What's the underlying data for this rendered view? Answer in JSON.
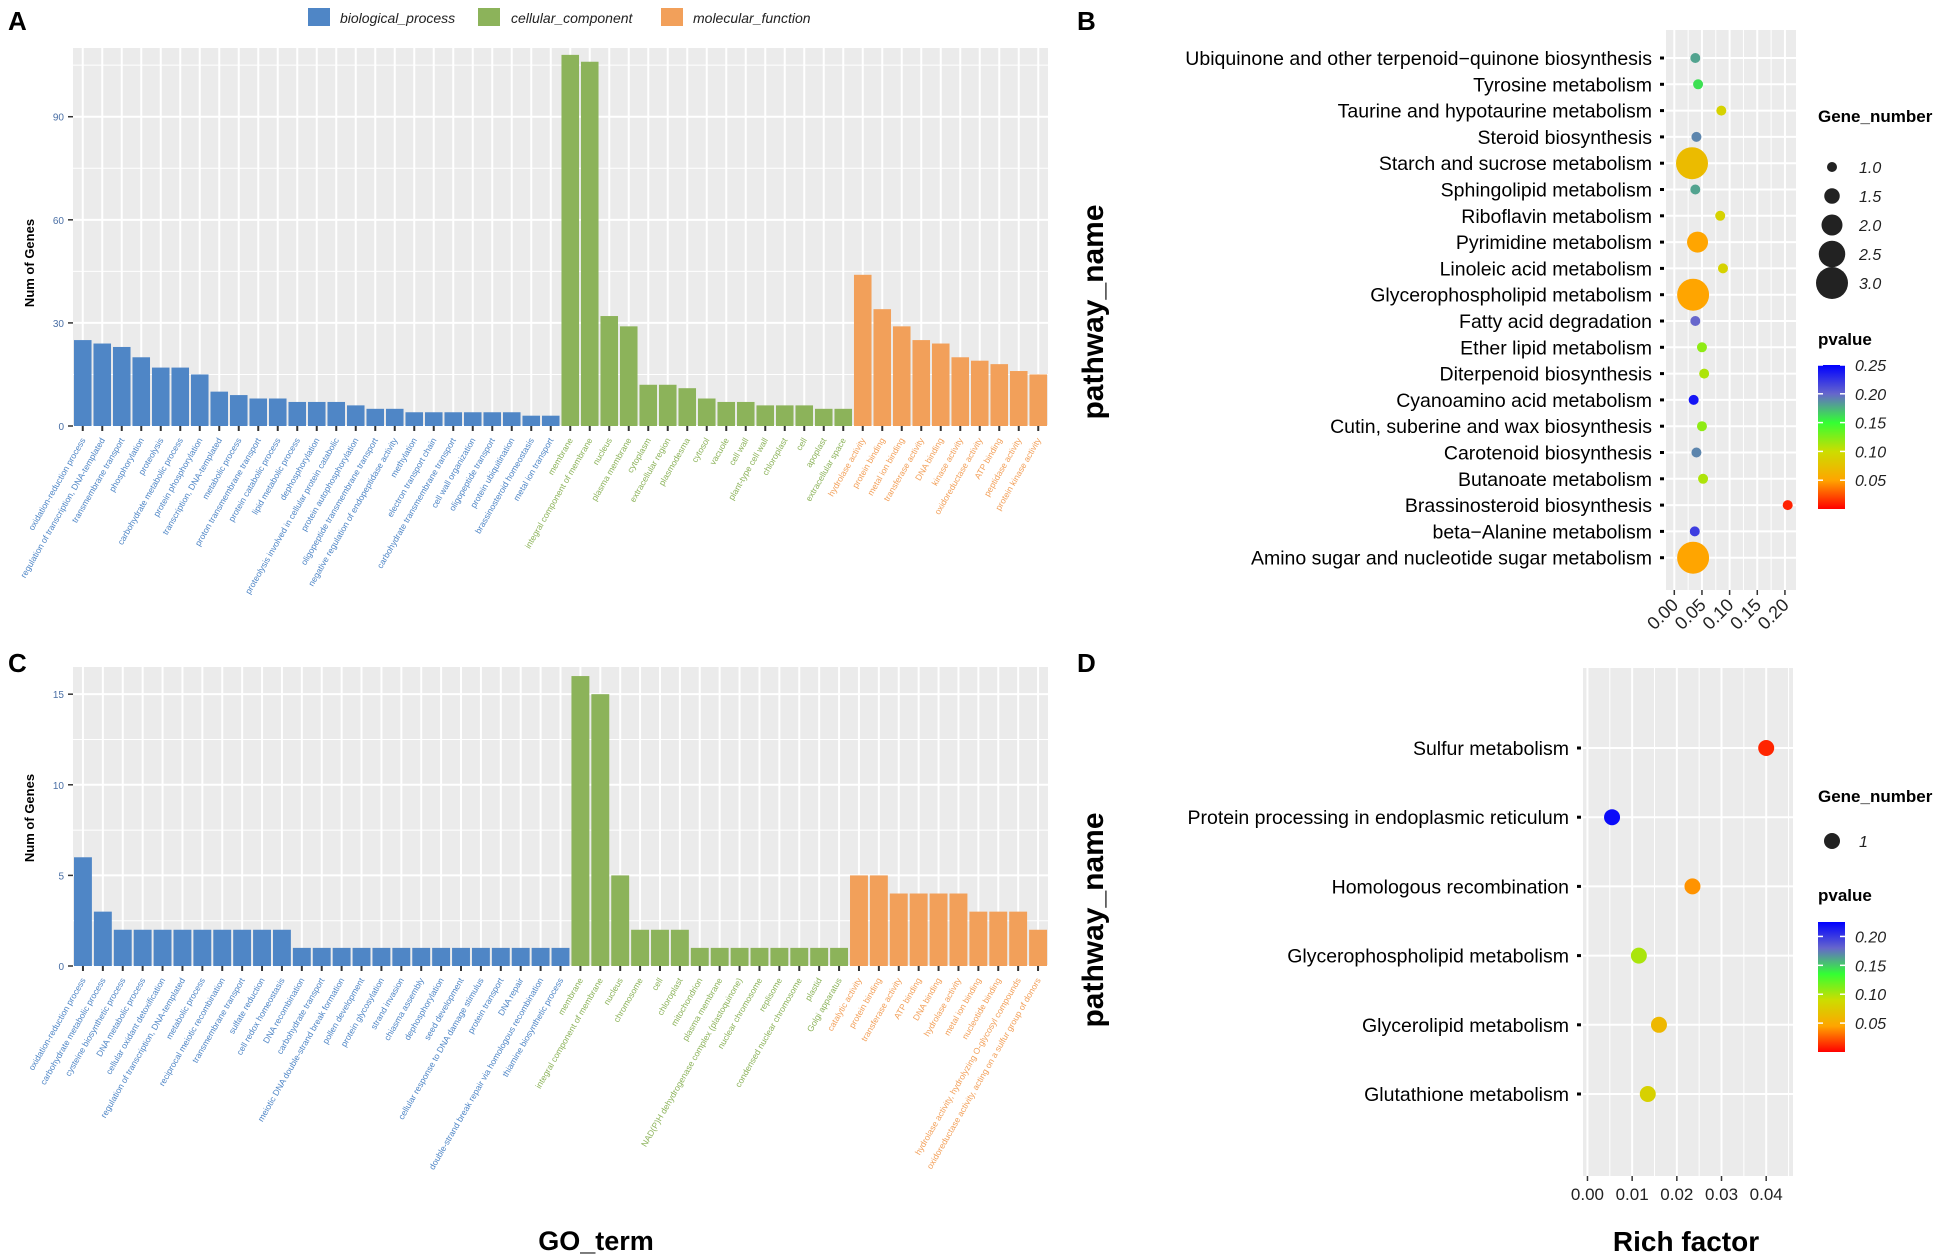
{
  "figure": {
    "shared_xlabel": "GO_term",
    "shared_rich_label": "Rich factor"
  },
  "colors": {
    "biological_process": "#4f86c6",
    "cellular_component": "#8cb35a",
    "molecular_function": "#f2a05a",
    "panel_bg": "#ebebeb",
    "grid": "#ffffff",
    "pvalue_gradient": [
      "#ff0000",
      "#ffa500",
      "#ccdd00",
      "#33ff33",
      "#6666cc",
      "#0000ff"
    ]
  },
  "legend": {
    "categories": [
      {
        "key": "biological_process",
        "label": "biological_process"
      },
      {
        "key": "cellular_component",
        "label": "cellular_component"
      },
      {
        "key": "molecular_function",
        "label": "molecular_function"
      }
    ]
  },
  "chart_data": [
    {
      "panel": "A",
      "type": "bar",
      "title": "",
      "xlabel": "",
      "ylabel": "Num of Genes",
      "ylim": [
        0,
        110
      ],
      "yticks": [
        0,
        30,
        60,
        90
      ],
      "categories": [
        "oxidation-reduction process",
        "regulation of transcription, DNA-templated",
        "transmembrane transport",
        "phosphorylation",
        "proteolysis",
        "carbohydrate metabolic process",
        "protein phosphorylation",
        "transcription, DNA-templated",
        "metabolic process",
        "proton transmembrane transport",
        "protein catabolic process",
        "lipid metabolic process",
        "dephosphorylation",
        "proteolysis involved in cellular protein catabolic",
        "protein autophosphorylation",
        "oligopeptide transmembrane transport",
        "negative regulation of endopeptidase activity",
        "methylation",
        "electron transport chain",
        "carbohydrate transmembrane transport",
        "cell wall organization",
        "oligopeptide transport",
        "protein ubiquitination",
        "brassinosteroid homeostasis",
        "metal ion transport",
        "membrane",
        "integral component of membrane",
        "nucleus",
        "plasma membrane",
        "cytoplasm",
        "extracellular region",
        "plasmodesma",
        "cytosol",
        "vacuole",
        "cell wall",
        "plant-type cell wall",
        "chloroplast",
        "cell",
        "apoplast",
        "extracellular space",
        "hydrolase activity",
        "protein binding",
        "metal ion binding",
        "transferase activity",
        "DNA binding",
        "kinase activity",
        "oxidoreductase activity",
        "ATP binding",
        "peptidase activity",
        "protein kinase activity"
      ],
      "groups": [
        "biological_process",
        "biological_process",
        "biological_process",
        "biological_process",
        "biological_process",
        "biological_process",
        "biological_process",
        "biological_process",
        "biological_process",
        "biological_process",
        "biological_process",
        "biological_process",
        "biological_process",
        "biological_process",
        "biological_process",
        "biological_process",
        "biological_process",
        "biological_process",
        "biological_process",
        "biological_process",
        "biological_process",
        "biological_process",
        "biological_process",
        "biological_process",
        "biological_process",
        "cellular_component",
        "cellular_component",
        "cellular_component",
        "cellular_component",
        "cellular_component",
        "cellular_component",
        "cellular_component",
        "cellular_component",
        "cellular_component",
        "cellular_component",
        "cellular_component",
        "cellular_component",
        "cellular_component",
        "cellular_component",
        "cellular_component",
        "molecular_function",
        "molecular_function",
        "molecular_function",
        "molecular_function",
        "molecular_function",
        "molecular_function",
        "molecular_function",
        "molecular_function",
        "molecular_function",
        "molecular_function"
      ],
      "values": [
        25,
        24,
        23,
        20,
        17,
        17,
        15,
        10,
        9,
        8,
        8,
        7,
        7,
        7,
        6,
        5,
        5,
        4,
        4,
        4,
        4,
        4,
        4,
        3,
        3,
        108,
        106,
        32,
        29,
        12,
        12,
        11,
        8,
        7,
        7,
        6,
        6,
        6,
        5,
        5,
        44,
        34,
        29,
        25,
        24,
        20,
        19,
        18,
        16,
        15
      ]
    },
    {
      "panel": "B",
      "type": "scatter",
      "xlabel": "",
      "ylabel": "pathway_name",
      "xlim": [
        -0.015,
        0.22
      ],
      "xticks": [
        0.0,
        0.05,
        0.1,
        0.15,
        0.2
      ],
      "xtick_labels": [
        "0.00",
        "0.05",
        "0.10",
        "0.15",
        "0.20"
      ],
      "categories": [
        "Ubiquinone and other terpenoid−quinone biosynthesis",
        "Tyrosine metabolism",
        "Taurine and hypotaurine metabolism",
        "Steroid biosynthesis",
        "Starch and sucrose metabolism",
        "Sphingolipid metabolism",
        "Riboflavin metabolism",
        "Pyrimidine metabolism",
        "Linoleic acid metabolism",
        "Glycerophospholipid metabolism",
        "Fatty acid degradation",
        "Ether lipid metabolism",
        "Diterpenoid biosynthesis",
        "Cyanoamino acid metabolism",
        "Cutin, suberine and wax biosynthesis",
        "Carotenoid biosynthesis",
        "Butanoate metabolism",
        "Brassinosteroid biosynthesis",
        "beta−Alanine metabolism",
        "Amino sugar and nucleotide sugar metabolism"
      ],
      "x": [
        0.038,
        0.043,
        0.085,
        0.04,
        0.032,
        0.038,
        0.083,
        0.042,
        0.088,
        0.034,
        0.038,
        0.05,
        0.054,
        0.035,
        0.05,
        0.04,
        0.052,
        0.205,
        0.037,
        0.034
      ],
      "size": [
        1,
        1,
        1,
        1,
        3,
        1,
        1,
        2,
        1,
        3,
        1,
        1,
        1,
        1,
        1,
        1,
        1,
        1,
        1,
        3
      ],
      "pvalue": [
        0.18,
        0.16,
        0.09,
        0.19,
        0.07,
        0.18,
        0.09,
        0.05,
        0.09,
        0.05,
        0.2,
        0.12,
        0.11,
        0.24,
        0.12,
        0.19,
        0.11,
        0.01,
        0.22,
        0.05
      ],
      "legend": {
        "size_title": "Gene_number",
        "size_values": [
          1.0,
          1.5,
          2.0,
          2.5,
          3.0
        ],
        "size_labels": [
          "1.0",
          "1.5",
          "2.0",
          "2.5",
          "3.0"
        ],
        "color_title": "pvalue",
        "color_range": [
          0.0,
          0.25
        ],
        "color_ticks": [
          0.25,
          0.2,
          0.15,
          0.1,
          0.05
        ],
        "color_labels": [
          "0.25",
          "0.20",
          "0.15",
          "0.10",
          "0.05"
        ]
      }
    },
    {
      "panel": "C",
      "type": "bar",
      "title": "",
      "xlabel": "GO_term",
      "ylabel": "Num of Genes",
      "ylim": [
        0,
        16.5
      ],
      "yticks": [
        0,
        5,
        10,
        15
      ],
      "categories": [
        "oxidation-reduction process",
        "carbohydrate metabolic process",
        "cysteine biosynthetic process",
        "DNA metabolic process",
        "cellular oxidant detoxification",
        "regulation of transcription, DNA-templated",
        "metabolic process",
        "reciprocal meiotic recombination",
        "transmembrane transport",
        "sulfate reduction",
        "cell redox homeostasis",
        "DNA recombination",
        "carbohydrate transport",
        "meiotic DNA double-strand break formation",
        "pollen development",
        "protein glycosylation",
        "strand invasion",
        "chiasma assembly",
        "dephosphorylation",
        "seed development",
        "cellular response to DNA damage stimulus",
        "protein transport",
        "DNA repair",
        "double-strand break repair via homologous recombination",
        "thiamine biosynthetic process",
        "membrane",
        "integral component of membrane",
        "nucleus",
        "chromosome",
        "cell",
        "chloroplast",
        "mitochondrion",
        "plasma membrane",
        "NAD(P)H dehydrogenase complex (plastoquinone)",
        "nuclear chromosome",
        "replisome",
        "condensed nuclear chromosome",
        "plastid",
        "Golgi apparatus",
        "catalytic activity",
        "protein binding",
        "transferase activity",
        "ATP binding",
        "DNA binding",
        "hydrolase activity",
        "metal ion binding",
        "nucleotide binding",
        "hydrolase activity, hydrolyzing O-glycosyl compounds",
        "oxidoreductase activity, acting on a sulfur group of donors"
      ],
      "groups": [
        "biological_process",
        "biological_process",
        "biological_process",
        "biological_process",
        "biological_process",
        "biological_process",
        "biological_process",
        "biological_process",
        "biological_process",
        "biological_process",
        "biological_process",
        "biological_process",
        "biological_process",
        "biological_process",
        "biological_process",
        "biological_process",
        "biological_process",
        "biological_process",
        "biological_process",
        "biological_process",
        "biological_process",
        "biological_process",
        "biological_process",
        "biological_process",
        "biological_process",
        "cellular_component",
        "cellular_component",
        "cellular_component",
        "cellular_component",
        "cellular_component",
        "cellular_component",
        "cellular_component",
        "cellular_component",
        "cellular_component",
        "cellular_component",
        "cellular_component",
        "cellular_component",
        "cellular_component",
        "cellular_component",
        "molecular_function",
        "molecular_function",
        "molecular_function",
        "molecular_function",
        "molecular_function",
        "molecular_function",
        "molecular_function",
        "molecular_function",
        "molecular_function",
        "molecular_function"
      ],
      "values": [
        6,
        3,
        2,
        2,
        2,
        2,
        2,
        2,
        2,
        2,
        2,
        1,
        1,
        1,
        1,
        1,
        1,
        1,
        1,
        1,
        1,
        1,
        1,
        1,
        1,
        16,
        15,
        5,
        2,
        2,
        2,
        1,
        1,
        1,
        1,
        1,
        1,
        1,
        1,
        5,
        5,
        4,
        4,
        4,
        4,
        3,
        3,
        3,
        2
      ]
    },
    {
      "panel": "D",
      "type": "scatter",
      "xlabel": "Rich factor",
      "ylabel": "pathway_name",
      "xlim": [
        -0.001,
        0.046
      ],
      "xticks": [
        0.0,
        0.01,
        0.02,
        0.03,
        0.04
      ],
      "xtick_labels": [
        "0.00",
        "0.01",
        "0.02",
        "0.03",
        "0.04"
      ],
      "categories": [
        "Sulfur metabolism",
        "Protein processing in endoplasmic reticulum",
        "Homologous recombination",
        "Glycerophospholipid metabolism",
        "Glycerolipid metabolism",
        "Glutathione metabolism"
      ],
      "x": [
        0.04,
        0.0055,
        0.0235,
        0.0115,
        0.016,
        0.0135
      ],
      "size": [
        1,
        1,
        1,
        1,
        1,
        1
      ],
      "pvalue": [
        0.01,
        0.22,
        0.04,
        0.1,
        0.06,
        0.08
      ],
      "legend": {
        "size_title": "Gene_number",
        "size_values": [
          1
        ],
        "size_labels": [
          "1"
        ],
        "color_title": "pvalue",
        "color_range": [
          0.0,
          0.225
        ],
        "color_ticks": [
          0.2,
          0.15,
          0.1,
          0.05
        ],
        "color_labels": [
          "0.20",
          "0.15",
          "0.10",
          "0.05"
        ]
      }
    }
  ]
}
